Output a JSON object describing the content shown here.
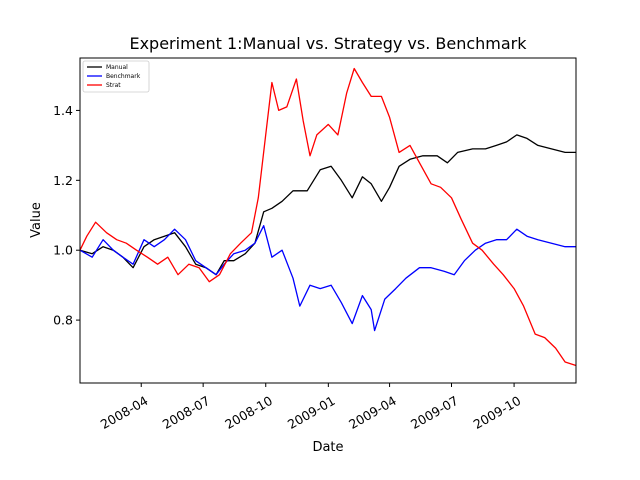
{
  "chart_data": {
    "type": "line",
    "title": "Experiment 1:Manual vs. Strategy vs. Benchmark",
    "xlabel": "Date",
    "ylabel": "Value",
    "xlim": [
      "2008-01-02",
      "2009-12-31"
    ],
    "ylim": [
      0.62,
      1.55
    ],
    "x_ticks": [
      {
        "date": "2008-04-01",
        "label": "2008-04"
      },
      {
        "date": "2008-07-01",
        "label": "2008-07"
      },
      {
        "date": "2008-10-01",
        "label": "2008-10"
      },
      {
        "date": "2009-01-01",
        "label": "2009-01"
      },
      {
        "date": "2009-04-01",
        "label": "2009-04"
      },
      {
        "date": "2009-07-01",
        "label": "2009-07"
      },
      {
        "date": "2009-10-01",
        "label": "2009-10"
      }
    ],
    "y_ticks": [
      {
        "value": 0.8,
        "label": "0.8"
      },
      {
        "value": 1.0,
        "label": "1.0"
      },
      {
        "value": 1.2,
        "label": "1.2"
      },
      {
        "value": 1.4,
        "label": "1.4"
      }
    ],
    "legend_position": "top-left",
    "series": [
      {
        "name": "Manual",
        "color": "#000000",
        "points": [
          [
            "2008-01-02",
            1.0
          ],
          [
            "2008-01-20",
            0.99
          ],
          [
            "2008-02-05",
            1.01
          ],
          [
            "2008-02-20",
            1.0
          ],
          [
            "2008-03-05",
            0.98
          ],
          [
            "2008-03-20",
            0.95
          ],
          [
            "2008-04-05",
            1.01
          ],
          [
            "2008-04-20",
            1.03
          ],
          [
            "2008-05-05",
            1.04
          ],
          [
            "2008-05-20",
            1.05
          ],
          [
            "2008-06-05",
            1.01
          ],
          [
            "2008-06-20",
            0.96
          ],
          [
            "2008-07-05",
            0.95
          ],
          [
            "2008-07-20",
            0.93
          ],
          [
            "2008-08-01",
            0.97
          ],
          [
            "2008-08-15",
            0.97
          ],
          [
            "2008-09-01",
            0.99
          ],
          [
            "2008-09-15",
            1.02
          ],
          [
            "2008-09-28",
            1.11
          ],
          [
            "2008-10-10",
            1.12
          ],
          [
            "2008-10-25",
            1.14
          ],
          [
            "2008-11-10",
            1.17
          ],
          [
            "2008-12-01",
            1.17
          ],
          [
            "2008-12-20",
            1.23
          ],
          [
            "2009-01-05",
            1.24
          ],
          [
            "2009-01-20",
            1.2
          ],
          [
            "2009-02-05",
            1.15
          ],
          [
            "2009-02-20",
            1.21
          ],
          [
            "2009-03-05",
            1.19
          ],
          [
            "2009-03-20",
            1.14
          ],
          [
            "2009-04-01",
            1.18
          ],
          [
            "2009-04-15",
            1.24
          ],
          [
            "2009-05-01",
            1.26
          ],
          [
            "2009-05-20",
            1.27
          ],
          [
            "2009-06-10",
            1.27
          ],
          [
            "2009-06-25",
            1.25
          ],
          [
            "2009-07-10",
            1.28
          ],
          [
            "2009-08-01",
            1.29
          ],
          [
            "2009-08-20",
            1.29
          ],
          [
            "2009-09-05",
            1.3
          ],
          [
            "2009-09-20",
            1.31
          ],
          [
            "2009-10-05",
            1.33
          ],
          [
            "2009-10-20",
            1.32
          ],
          [
            "2009-11-05",
            1.3
          ],
          [
            "2009-11-25",
            1.29
          ],
          [
            "2009-12-15",
            1.28
          ],
          [
            "2009-12-31",
            1.28
          ]
        ]
      },
      {
        "name": "Benchmark",
        "color": "#0000ff",
        "points": [
          [
            "2008-01-02",
            1.0
          ],
          [
            "2008-01-20",
            0.98
          ],
          [
            "2008-02-05",
            1.03
          ],
          [
            "2008-02-20",
            1.0
          ],
          [
            "2008-03-05",
            0.98
          ],
          [
            "2008-03-20",
            0.96
          ],
          [
            "2008-04-05",
            1.03
          ],
          [
            "2008-04-20",
            1.01
          ],
          [
            "2008-05-05",
            1.03
          ],
          [
            "2008-05-20",
            1.06
          ],
          [
            "2008-06-05",
            1.03
          ],
          [
            "2008-06-20",
            0.97
          ],
          [
            "2008-07-05",
            0.95
          ],
          [
            "2008-07-20",
            0.93
          ],
          [
            "2008-08-01",
            0.96
          ],
          [
            "2008-08-15",
            0.99
          ],
          [
            "2008-09-01",
            1.0
          ],
          [
            "2008-09-15",
            1.02
          ],
          [
            "2008-09-28",
            1.07
          ],
          [
            "2008-10-10",
            0.98
          ],
          [
            "2008-10-25",
            1.0
          ],
          [
            "2008-11-10",
            0.92
          ],
          [
            "2008-11-20",
            0.84
          ],
          [
            "2008-12-05",
            0.9
          ],
          [
            "2008-12-20",
            0.89
          ],
          [
            "2009-01-05",
            0.9
          ],
          [
            "2009-01-20",
            0.85
          ],
          [
            "2009-02-05",
            0.79
          ],
          [
            "2009-02-20",
            0.87
          ],
          [
            "2009-03-05",
            0.83
          ],
          [
            "2009-03-10",
            0.77
          ],
          [
            "2009-03-25",
            0.86
          ],
          [
            "2009-04-10",
            0.89
          ],
          [
            "2009-04-25",
            0.92
          ],
          [
            "2009-05-15",
            0.95
          ],
          [
            "2009-06-01",
            0.95
          ],
          [
            "2009-06-20",
            0.94
          ],
          [
            "2009-07-05",
            0.93
          ],
          [
            "2009-07-20",
            0.97
          ],
          [
            "2009-08-05",
            1.0
          ],
          [
            "2009-08-20",
            1.02
          ],
          [
            "2009-09-05",
            1.03
          ],
          [
            "2009-09-20",
            1.03
          ],
          [
            "2009-10-05",
            1.06
          ],
          [
            "2009-10-20",
            1.04
          ],
          [
            "2009-11-05",
            1.03
          ],
          [
            "2009-11-25",
            1.02
          ],
          [
            "2009-12-15",
            1.01
          ],
          [
            "2009-12-31",
            1.01
          ]
        ]
      },
      {
        "name": "Strat",
        "color": "#ff0000",
        "points": [
          [
            "2008-01-02",
            1.0
          ],
          [
            "2008-01-12",
            1.04
          ],
          [
            "2008-01-25",
            1.08
          ],
          [
            "2008-02-10",
            1.05
          ],
          [
            "2008-02-25",
            1.03
          ],
          [
            "2008-03-10",
            1.02
          ],
          [
            "2008-03-25",
            1.0
          ],
          [
            "2008-04-10",
            0.98
          ],
          [
            "2008-04-25",
            0.96
          ],
          [
            "2008-05-10",
            0.98
          ],
          [
            "2008-05-25",
            0.93
          ],
          [
            "2008-06-10",
            0.96
          ],
          [
            "2008-06-25",
            0.95
          ],
          [
            "2008-07-10",
            0.91
          ],
          [
            "2008-07-25",
            0.93
          ],
          [
            "2008-08-10",
            0.99
          ],
          [
            "2008-08-25",
            1.02
          ],
          [
            "2008-09-10",
            1.05
          ],
          [
            "2008-09-20",
            1.15
          ],
          [
            "2008-10-01",
            1.33
          ],
          [
            "2008-10-10",
            1.48
          ],
          [
            "2008-10-20",
            1.4
          ],
          [
            "2008-11-01",
            1.41
          ],
          [
            "2008-11-15",
            1.49
          ],
          [
            "2008-11-25",
            1.37
          ],
          [
            "2008-12-05",
            1.27
          ],
          [
            "2008-12-15",
            1.33
          ],
          [
            "2009-01-01",
            1.36
          ],
          [
            "2009-01-15",
            1.33
          ],
          [
            "2009-01-28",
            1.45
          ],
          [
            "2009-02-08",
            1.52
          ],
          [
            "2009-02-20",
            1.48
          ],
          [
            "2009-03-05",
            1.44
          ],
          [
            "2009-03-20",
            1.44
          ],
          [
            "2009-04-01",
            1.38
          ],
          [
            "2009-04-15",
            1.28
          ],
          [
            "2009-05-01",
            1.3
          ],
          [
            "2009-05-15",
            1.25
          ],
          [
            "2009-06-01",
            1.19
          ],
          [
            "2009-06-15",
            1.18
          ],
          [
            "2009-07-01",
            1.15
          ],
          [
            "2009-07-15",
            1.09
          ],
          [
            "2009-08-01",
            1.02
          ],
          [
            "2009-08-15",
            1.0
          ],
          [
            "2009-09-01",
            0.96
          ],
          [
            "2009-09-15",
            0.93
          ],
          [
            "2009-10-01",
            0.89
          ],
          [
            "2009-10-15",
            0.84
          ],
          [
            "2009-11-01",
            0.76
          ],
          [
            "2009-11-15",
            0.75
          ],
          [
            "2009-12-01",
            0.72
          ],
          [
            "2009-12-15",
            0.68
          ],
          [
            "2009-12-31",
            0.67
          ]
        ]
      }
    ]
  }
}
